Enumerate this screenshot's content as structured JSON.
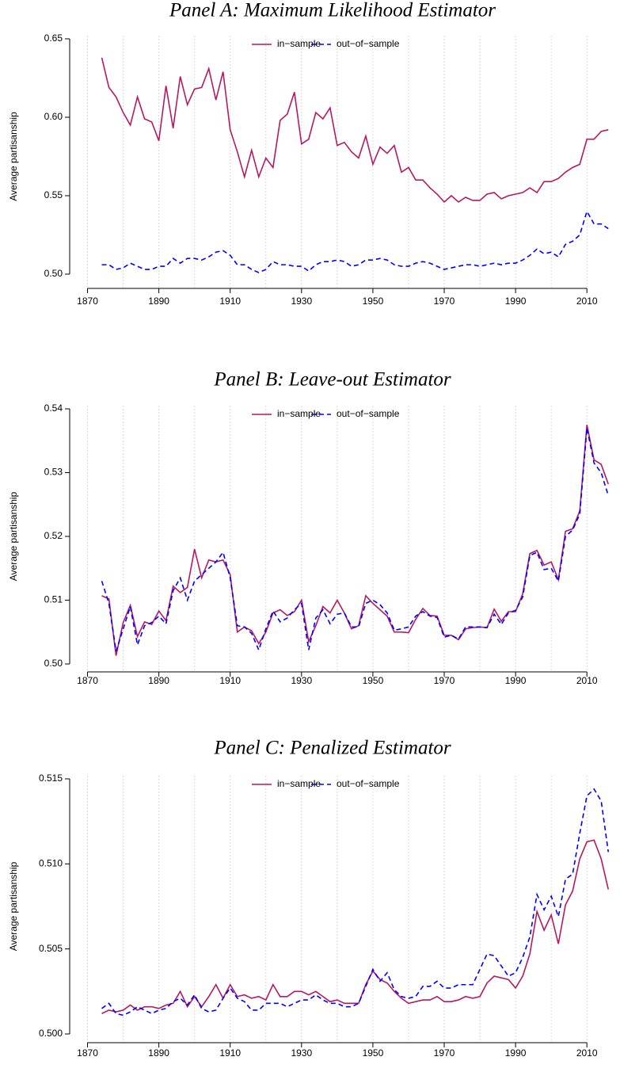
{
  "chart_data": [
    {
      "type": "line",
      "title": "Panel A: Maximum Likelihood Estimator",
      "ylabel": "Average partisanship",
      "x": [
        1874,
        1876,
        1878,
        1880,
        1882,
        1884,
        1886,
        1888,
        1890,
        1892,
        1894,
        1896,
        1898,
        1900,
        1902,
        1904,
        1906,
        1908,
        1910,
        1912,
        1914,
        1916,
        1918,
        1920,
        1922,
        1924,
        1926,
        1928,
        1930,
        1932,
        1934,
        1936,
        1938,
        1940,
        1942,
        1944,
        1946,
        1948,
        1950,
        1952,
        1954,
        1956,
        1958,
        1960,
        1962,
        1964,
        1966,
        1968,
        1970,
        1972,
        1974,
        1976,
        1978,
        1980,
        1982,
        1984,
        1986,
        1988,
        1990,
        1992,
        1994,
        1996,
        1998,
        2000,
        2002,
        2004,
        2006,
        2008,
        2010,
        2012,
        2014,
        2016
      ],
      "series": [
        {
          "name": "in−sample",
          "color": "#b5195f",
          "linestyle": "solid",
          "values": [
            0.638,
            0.619,
            0.613,
            0.603,
            0.595,
            0.613,
            0.599,
            0.597,
            0.585,
            0.62,
            0.593,
            0.626,
            0.608,
            0.618,
            0.619,
            0.631,
            0.611,
            0.629,
            0.592,
            0.578,
            0.562,
            0.579,
            0.562,
            0.574,
            0.568,
            0.598,
            0.602,
            0.616,
            0.583,
            0.586,
            0.603,
            0.599,
            0.606,
            0.582,
            0.584,
            0.578,
            0.574,
            0.588,
            0.57,
            0.581,
            0.577,
            0.582,
            0.565,
            0.568,
            0.56,
            0.56,
            0.555,
            0.551,
            0.546,
            0.55,
            0.546,
            0.549,
            0.547,
            0.547,
            0.551,
            0.552,
            0.548,
            0.55,
            0.551,
            0.552,
            0.555,
            0.552,
            0.559,
            0.559,
            0.561,
            0.565,
            0.568,
            0.57,
            0.586,
            0.586,
            0.591,
            0.592
          ]
        },
        {
          "name": "out−of−sample",
          "color": "#0000ff",
          "linestyle": "dashed",
          "values": [
            0.506,
            0.506,
            0.503,
            0.504,
            0.507,
            0.505,
            0.503,
            0.503,
            0.505,
            0.505,
            0.51,
            0.507,
            0.51,
            0.51,
            0.509,
            0.511,
            0.514,
            0.515,
            0.512,
            0.506,
            0.506,
            0.503,
            0.501,
            0.503,
            0.508,
            0.506,
            0.506,
            0.505,
            0.505,
            0.502,
            0.506,
            0.508,
            0.508,
            0.509,
            0.508,
            0.505,
            0.506,
            0.509,
            0.509,
            0.51,
            0.509,
            0.506,
            0.505,
            0.505,
            0.507,
            0.508,
            0.507,
            0.505,
            0.503,
            0.504,
            0.505,
            0.506,
            0.506,
            0.505,
            0.506,
            0.507,
            0.506,
            0.507,
            0.507,
            0.509,
            0.512,
            0.516,
            0.513,
            0.514,
            0.511,
            0.519,
            0.521,
            0.525,
            0.54,
            0.532,
            0.532,
            0.529
          ]
        }
      ],
      "xlim": [
        1865,
        2017.5
      ],
      "xticks": [
        1870,
        1890,
        1910,
        1930,
        1950,
        1970,
        1990,
        2010
      ],
      "xgrid": [
        1870,
        1880,
        1890,
        1900,
        1910,
        1920,
        1930,
        1940,
        1950,
        1960,
        1970,
        1980,
        1990,
        2000,
        2010
      ],
      "ylim": [
        0.5,
        0.65
      ],
      "yticks": [
        {
          "value": 0.5,
          "label": "0.50"
        },
        0.55,
        {
          "value": 0.6,
          "label": "0.60"
        },
        0.65
      ],
      "legend": "top"
    },
    {
      "type": "line",
      "title": "Panel B: Leave-out Estimator",
      "ylabel": "Average partisanship",
      "x": [
        1874,
        1876,
        1878,
        1880,
        1882,
        1884,
        1886,
        1888,
        1890,
        1892,
        1894,
        1896,
        1898,
        1900,
        1902,
        1904,
        1906,
        1908,
        1910,
        1912,
        1914,
        1916,
        1918,
        1920,
        1922,
        1924,
        1926,
        1928,
        1930,
        1932,
        1934,
        1936,
        1938,
        1940,
        1942,
        1944,
        1946,
        1948,
        1950,
        1952,
        1954,
        1956,
        1958,
        1960,
        1962,
        1964,
        1966,
        1968,
        1970,
        1972,
        1974,
        1976,
        1978,
        1980,
        1982,
        1984,
        1986,
        1988,
        1990,
        1992,
        1994,
        1996,
        1998,
        2000,
        2002,
        2004,
        2006,
        2008,
        2010,
        2012,
        2014,
        2016
      ],
      "series": [
        {
          "name": "in−sample",
          "color": "#b5195f",
          "linestyle": "solid",
          "values": [
            0.5107,
            0.5102,
            0.5013,
            0.5065,
            0.5092,
            0.5043,
            0.5066,
            0.5062,
            0.5083,
            0.5068,
            0.5122,
            0.5112,
            0.512,
            0.518,
            0.5135,
            0.5163,
            0.516,
            0.5163,
            0.514,
            0.505,
            0.5058,
            0.5052,
            0.5032,
            0.505,
            0.508,
            0.5085,
            0.5076,
            0.5082,
            0.51,
            0.5035,
            0.506,
            0.509,
            0.508,
            0.51,
            0.508,
            0.5055,
            0.506,
            0.5107,
            0.5095,
            0.5085,
            0.5075,
            0.505,
            0.505,
            0.5049,
            0.507,
            0.5087,
            0.5076,
            0.5075,
            0.5045,
            0.5045,
            0.5038,
            0.5055,
            0.5057,
            0.5058,
            0.5057,
            0.5086,
            0.5067,
            0.5082,
            0.5082,
            0.511,
            0.5173,
            0.5178,
            0.5155,
            0.516,
            0.5132,
            0.5208,
            0.5212,
            0.524,
            0.5375,
            0.532,
            0.5313,
            0.5282
          ]
        },
        {
          "name": "out−of−sample",
          "color": "#0000ff",
          "linestyle": "dashed",
          "values": [
            0.513,
            0.5095,
            0.502,
            0.5055,
            0.509,
            0.503,
            0.506,
            0.5065,
            0.5075,
            0.5063,
            0.5115,
            0.5135,
            0.51,
            0.513,
            0.514,
            0.515,
            0.516,
            0.5175,
            0.5135,
            0.506,
            0.5058,
            0.5048,
            0.5022,
            0.5055,
            0.5083,
            0.5066,
            0.5072,
            0.5085,
            0.5095,
            0.5022,
            0.5072,
            0.5085,
            0.5063,
            0.5078,
            0.508,
            0.5058,
            0.5058,
            0.5095,
            0.51,
            0.5093,
            0.508,
            0.5053,
            0.5055,
            0.5058,
            0.5075,
            0.5082,
            0.5075,
            0.5073,
            0.5042,
            0.5045,
            0.5039,
            0.5058,
            0.5058,
            0.5058,
            0.5057,
            0.5078,
            0.5062,
            0.508,
            0.5084,
            0.5105,
            0.517,
            0.5175,
            0.5148,
            0.515,
            0.513,
            0.52,
            0.521,
            0.5235,
            0.537,
            0.5315,
            0.53,
            0.5264
          ]
        }
      ],
      "xlim": [
        1865,
        2017.5
      ],
      "xticks": [
        1870,
        1890,
        1910,
        1930,
        1950,
        1970,
        1990,
        2010
      ],
      "xgrid": [
        1870,
        1880,
        1890,
        1900,
        1910,
        1920,
        1930,
        1940,
        1950,
        1960,
        1970,
        1980,
        1990,
        2000,
        2010
      ],
      "ylim": [
        0.5,
        0.54
      ],
      "yticks": [
        {
          "value": 0.5,
          "label": "0.50"
        },
        0.51,
        0.52,
        0.53,
        0.54
      ],
      "legend": "top"
    },
    {
      "type": "line",
      "title": "Panel C: Penalized Estimator",
      "ylabel": "Average partisanship",
      "x": [
        1874,
        1876,
        1878,
        1880,
        1882,
        1884,
        1886,
        1888,
        1890,
        1892,
        1894,
        1896,
        1898,
        1900,
        1902,
        1904,
        1906,
        1908,
        1910,
        1912,
        1914,
        1916,
        1918,
        1920,
        1922,
        1924,
        1926,
        1928,
        1930,
        1932,
        1934,
        1936,
        1938,
        1940,
        1942,
        1944,
        1946,
        1948,
        1950,
        1952,
        1954,
        1956,
        1958,
        1960,
        1962,
        1964,
        1966,
        1968,
        1970,
        1972,
        1974,
        1976,
        1978,
        1980,
        1982,
        1984,
        1986,
        1988,
        1990,
        1992,
        1994,
        1996,
        1998,
        2000,
        2002,
        2004,
        2006,
        2008,
        2010,
        2012,
        2014,
        2016
      ],
      "series": [
        {
          "name": "in−sample",
          "color": "#b5195f",
          "linestyle": "solid",
          "values": [
            0.5012,
            0.5014,
            0.5013,
            0.5014,
            0.5017,
            0.5014,
            0.5016,
            0.5016,
            0.5015,
            0.5017,
            0.5018,
            0.5025,
            0.5016,
            0.5022,
            0.5016,
            0.5022,
            0.5029,
            0.5021,
            0.5029,
            0.5022,
            0.5023,
            0.5021,
            0.5022,
            0.502,
            0.5029,
            0.5022,
            0.5022,
            0.5025,
            0.5025,
            0.5023,
            0.5025,
            0.5022,
            0.5019,
            0.502,
            0.5018,
            0.5018,
            0.5018,
            0.5029,
            0.5037,
            0.5032,
            0.503,
            0.5025,
            0.5021,
            0.5018,
            0.5019,
            0.502,
            0.502,
            0.5022,
            0.5019,
            0.5019,
            0.502,
            0.5022,
            0.5021,
            0.5022,
            0.503,
            0.5034,
            0.5033,
            0.5032,
            0.5027,
            0.5034,
            0.5047,
            0.5072,
            0.5061,
            0.507,
            0.5053,
            0.5076,
            0.5084,
            0.5103,
            0.5113,
            0.5114,
            0.5103,
            0.5085
          ]
        },
        {
          "name": "out−of−sample",
          "color": "#0000ff",
          "linestyle": "dashed",
          "values": [
            0.5015,
            0.5018,
            0.5012,
            0.5011,
            0.5013,
            0.5016,
            0.5014,
            0.5012,
            0.5014,
            0.5015,
            0.5019,
            0.5021,
            0.5017,
            0.5023,
            0.5015,
            0.5013,
            0.5014,
            0.5021,
            0.5027,
            0.5021,
            0.5019,
            0.5014,
            0.5014,
            0.5018,
            0.5018,
            0.5018,
            0.5016,
            0.5018,
            0.502,
            0.502,
            0.5023,
            0.502,
            0.5018,
            0.5018,
            0.5016,
            0.5016,
            0.5018,
            0.5028,
            0.5038,
            0.5031,
            0.5036,
            0.5026,
            0.5022,
            0.5021,
            0.5022,
            0.5028,
            0.5028,
            0.5031,
            0.5027,
            0.5027,
            0.5029,
            0.5029,
            0.5029,
            0.5038,
            0.5047,
            0.5046,
            0.504,
            0.5034,
            0.5036,
            0.5045,
            0.5057,
            0.5082,
            0.5073,
            0.5081,
            0.5069,
            0.5091,
            0.5094,
            0.5118,
            0.514,
            0.5144,
            0.5137,
            0.5107
          ]
        }
      ],
      "xlim": [
        1865,
        2017.5
      ],
      "xticks": [
        1870,
        1890,
        1910,
        1930,
        1950,
        1970,
        1990,
        2010
      ],
      "xgrid": [
        1870,
        1880,
        1890,
        1900,
        1910,
        1920,
        1930,
        1940,
        1950,
        1960,
        1970,
        1980,
        1990,
        2000,
        2010
      ],
      "ylim": [
        0.5,
        0.515
      ],
      "yticks": [
        {
          "value": 0.5,
          "label": "0.500"
        },
        {
          "value": 0.505,
          "label": "0.505"
        },
        {
          "value": 0.51,
          "label": "0.510"
        },
        {
          "value": 0.515,
          "label": "0.515"
        }
      ],
      "legend": "top"
    }
  ]
}
